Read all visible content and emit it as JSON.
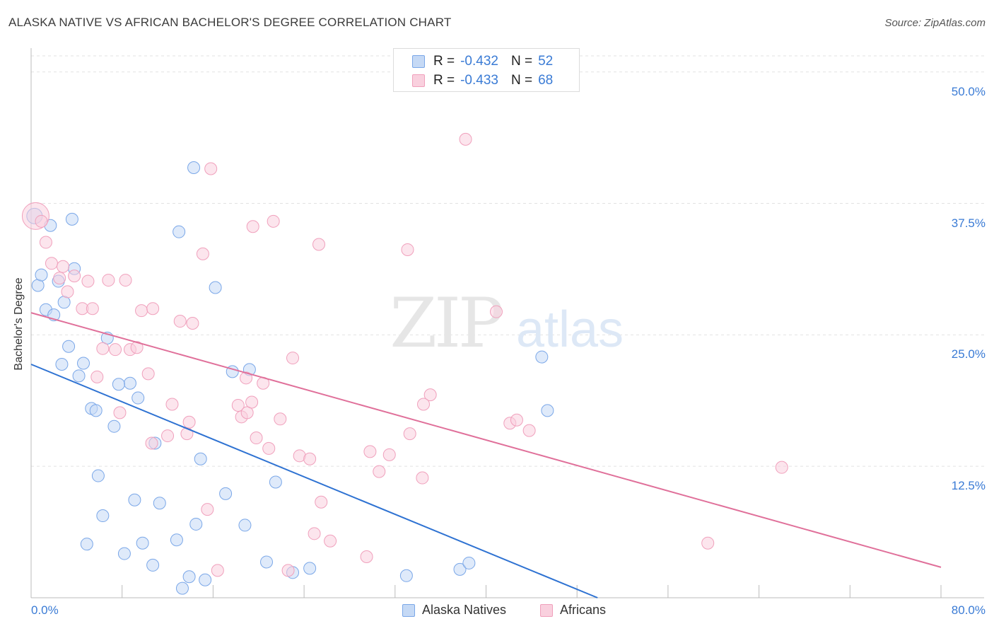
{
  "title": "ALASKA NATIVE VS AFRICAN BACHELOR'S DEGREE CORRELATION CHART",
  "source": "Source: ZipAtlas.com",
  "watermark": {
    "zip": "ZIP",
    "atlas": "atlas"
  },
  "legend": {
    "r_label": "R =",
    "n_label": "N =",
    "rows": [
      {
        "r": "-0.432",
        "n": "52"
      },
      {
        "r": "-0.433",
        "n": "68"
      }
    ]
  },
  "chart_data": {
    "type": "scatter",
    "title": "ALASKA NATIVE VS AFRICAN BACHELOR'S DEGREE CORRELATION CHART",
    "xlabel": "",
    "ylabel": "Bachelor's Degree",
    "xlim": [
      0,
      80
    ],
    "ylim": [
      0,
      52
    ],
    "x_tick_labels": [
      "0.0%",
      "80.0%"
    ],
    "y_ticks": [
      12.5,
      25.0,
      37.5,
      50.0
    ],
    "y_tick_labels": [
      "12.5%",
      "25.0%",
      "37.5%",
      "50.0%"
    ],
    "grid": true,
    "legend_position": "top-center",
    "series": [
      {
        "name": "Alaska Natives",
        "color": "#7aa7e8",
        "fill": "#c5d9f5",
        "line_color": "#2e72d2",
        "r": -0.432,
        "n": 52,
        "trend": [
          [
            0.0,
            22.2
          ],
          [
            49.8,
            0.0
          ]
        ],
        "points": [
          [
            0.3,
            36.3
          ],
          [
            1.7,
            35.4
          ],
          [
            3.6,
            36.0
          ],
          [
            14.3,
            40.9
          ],
          [
            13.0,
            34.8
          ],
          [
            0.6,
            29.7
          ],
          [
            0.9,
            30.7
          ],
          [
            2.4,
            30.1
          ],
          [
            3.8,
            31.3
          ],
          [
            16.2,
            29.5
          ],
          [
            1.3,
            27.4
          ],
          [
            2.0,
            26.9
          ],
          [
            2.9,
            28.1
          ],
          [
            6.7,
            24.7
          ],
          [
            3.3,
            23.9
          ],
          [
            2.7,
            22.2
          ],
          [
            4.6,
            22.3
          ],
          [
            17.7,
            21.5
          ],
          [
            19.2,
            21.7
          ],
          [
            4.2,
            21.1
          ],
          [
            8.7,
            20.4
          ],
          [
            7.7,
            20.3
          ],
          [
            9.4,
            19.0
          ],
          [
            5.3,
            18.0
          ],
          [
            5.7,
            17.8
          ],
          [
            7.3,
            16.3
          ],
          [
            10.9,
            14.7
          ],
          [
            14.9,
            13.2
          ],
          [
            44.9,
            22.9
          ],
          [
            45.4,
            17.8
          ],
          [
            5.9,
            11.6
          ],
          [
            17.1,
            9.9
          ],
          [
            21.5,
            11.0
          ],
          [
            9.1,
            9.3
          ],
          [
            11.3,
            9.0
          ],
          [
            6.3,
            7.8
          ],
          [
            14.5,
            7.0
          ],
          [
            18.8,
            6.9
          ],
          [
            4.9,
            5.1
          ],
          [
            8.2,
            4.2
          ],
          [
            9.8,
            5.2
          ],
          [
            12.8,
            5.5
          ],
          [
            10.7,
            3.1
          ],
          [
            20.7,
            3.4
          ],
          [
            24.5,
            2.8
          ],
          [
            23.0,
            2.4
          ],
          [
            13.9,
            2.0
          ],
          [
            15.3,
            1.7
          ],
          [
            33.0,
            2.1
          ],
          [
            37.7,
            2.7
          ],
          [
            38.5,
            3.3
          ],
          [
            13.3,
            0.9
          ]
        ]
      },
      {
        "name": "Africans",
        "color": "#f0a0bc",
        "fill": "#f9d0de",
        "line_color": "#e0709a",
        "r": -0.433,
        "n": 68,
        "trend": [
          [
            0.0,
            27.1
          ],
          [
            80.0,
            2.9
          ]
        ],
        "points": [
          [
            0.4,
            36.3
          ],
          [
            0.9,
            35.8
          ],
          [
            1.3,
            33.8
          ],
          [
            38.2,
            43.6
          ],
          [
            15.8,
            40.8
          ],
          [
            21.3,
            35.8
          ],
          [
            19.5,
            35.3
          ],
          [
            25.3,
            33.6
          ],
          [
            33.1,
            33.1
          ],
          [
            15.1,
            32.7
          ],
          [
            1.8,
            31.8
          ],
          [
            2.8,
            31.5
          ],
          [
            3.8,
            30.6
          ],
          [
            2.5,
            30.4
          ],
          [
            5.0,
            30.1
          ],
          [
            6.8,
            30.2
          ],
          [
            8.3,
            30.2
          ],
          [
            3.2,
            29.1
          ],
          [
            4.5,
            27.5
          ],
          [
            5.4,
            27.5
          ],
          [
            9.7,
            27.3
          ],
          [
            10.7,
            27.5
          ],
          [
            13.1,
            26.3
          ],
          [
            14.2,
            26.1
          ],
          [
            40.9,
            27.2
          ],
          [
            6.3,
            23.7
          ],
          [
            7.4,
            23.6
          ],
          [
            8.7,
            23.6
          ],
          [
            9.3,
            23.8
          ],
          [
            23.0,
            22.8
          ],
          [
            10.3,
            21.3
          ],
          [
            5.8,
            21.0
          ],
          [
            18.9,
            20.9
          ],
          [
            20.4,
            20.4
          ],
          [
            35.1,
            19.3
          ],
          [
            34.5,
            18.4
          ],
          [
            12.4,
            18.4
          ],
          [
            18.2,
            18.3
          ],
          [
            18.5,
            17.2
          ],
          [
            19.0,
            17.6
          ],
          [
            19.4,
            18.6
          ],
          [
            7.8,
            17.6
          ],
          [
            13.9,
            16.7
          ],
          [
            21.9,
            17.0
          ],
          [
            42.1,
            16.6
          ],
          [
            42.7,
            16.9
          ],
          [
            43.8,
            15.9
          ],
          [
            12.0,
            15.4
          ],
          [
            13.7,
            15.6
          ],
          [
            19.8,
            15.2
          ],
          [
            33.3,
            15.6
          ],
          [
            10.6,
            14.7
          ],
          [
            20.9,
            14.2
          ],
          [
            23.6,
            13.5
          ],
          [
            24.5,
            13.2
          ],
          [
            29.8,
            13.9
          ],
          [
            31.5,
            13.6
          ],
          [
            30.6,
            12.0
          ],
          [
            34.4,
            11.4
          ],
          [
            66.0,
            12.4
          ],
          [
            15.5,
            8.4
          ],
          [
            25.5,
            9.1
          ],
          [
            24.9,
            6.1
          ],
          [
            26.3,
            5.4
          ],
          [
            59.5,
            5.2
          ],
          [
            16.4,
            2.6
          ],
          [
            22.6,
            2.6
          ],
          [
            29.5,
            3.9
          ]
        ]
      }
    ]
  }
}
